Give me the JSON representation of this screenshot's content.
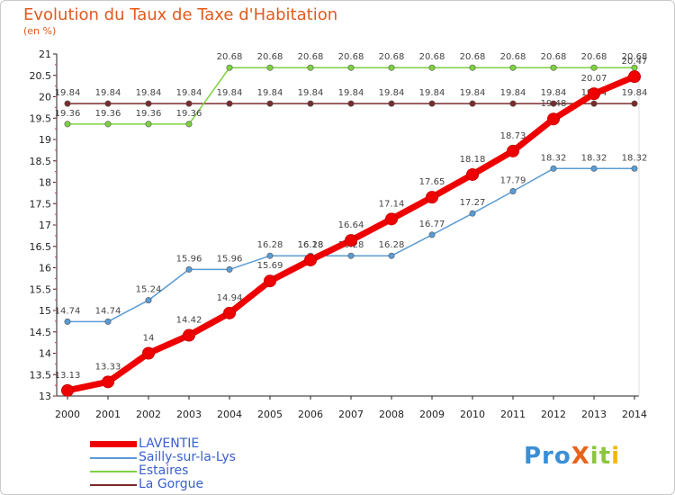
{
  "header": {
    "title": "Evolution du Taux de Taxe d'Habitation",
    "unit": "(en %)"
  },
  "chart_data": {
    "type": "line",
    "x": [
      2000,
      2001,
      2002,
      2003,
      2004,
      2005,
      2006,
      2007,
      2008,
      2009,
      2010,
      2011,
      2012,
      2013,
      2014
    ],
    "ylim": [
      13,
      21
    ],
    "yticks": [
      "13",
      "13.5",
      "14",
      "14.5",
      "15",
      "15.5",
      "16",
      "16.5",
      "17",
      "17.5",
      "18",
      "18.5",
      "19",
      "19.5",
      "20",
      "20.5",
      "21"
    ],
    "grid": false,
    "legend_position": "bottom-left",
    "series": [
      {
        "name": "LAVENTIE",
        "color": "#ee0000",
        "values": [
          13.13,
          13.33,
          14,
          14.42,
          14.94,
          15.69,
          16.18,
          16.64,
          17.14,
          17.65,
          18.18,
          18.73,
          19.48,
          20.07,
          20.47
        ],
        "labels": [
          "13.13",
          "13.33",
          "14",
          "14.42",
          "14.94",
          "15.69",
          "16.18",
          "16.64",
          "17.14",
          "17.65",
          "18.18",
          "18.73",
          "19.48",
          "20.07",
          "20.47"
        ]
      },
      {
        "name": "Sailly-sur-la-Lys",
        "color": "#5b9bd5",
        "values": [
          14.74,
          14.74,
          15.24,
          15.96,
          15.96,
          16.28,
          16.28,
          16.28,
          16.28,
          16.77,
          17.27,
          17.79,
          18.32,
          18.32,
          18.32
        ],
        "labels": [
          "14.74",
          "14.74",
          "15.24",
          "15.96",
          "15.96",
          "16.28",
          "16.28",
          "16.28",
          "16.28",
          "16.77",
          "17.27",
          "17.79",
          "18.32",
          "18.32",
          "18.32"
        ]
      },
      {
        "name": "Estaires",
        "color": "#7ed140",
        "values": [
          19.36,
          19.36,
          19.36,
          19.36,
          20.68,
          20.68,
          20.68,
          20.68,
          20.68,
          20.68,
          20.68,
          20.68,
          20.68,
          20.68,
          20.68
        ],
        "labels": [
          "19.36",
          "19.36",
          "19.36",
          "19.36",
          "20.68",
          "20.68",
          "20.68",
          "20.68",
          "20.68",
          "20.68",
          "20.68",
          "20.68",
          "20.68",
          "20.68",
          "20.68"
        ]
      },
      {
        "name": "La Gorgue",
        "color": "#7a2c2c",
        "values": [
          19.84,
          19.84,
          19.84,
          19.84,
          19.84,
          19.84,
          19.84,
          19.84,
          19.84,
          19.84,
          19.84,
          19.84,
          19.84,
          19.84,
          19.84
        ],
        "labels": [
          "19.84",
          "19.84",
          "19.84",
          "19.84",
          "19.84",
          "19.84",
          "19.84",
          "19.84",
          "19.84",
          "19.84",
          "19.84",
          "19.84",
          "19.84",
          "19.84",
          "19.84"
        ]
      }
    ]
  },
  "legend": {
    "items": [
      {
        "label": "LAVENTIE",
        "color": "#ee0000"
      },
      {
        "label": "Sailly-sur-la-Lys",
        "color": "#5b9bd5"
      },
      {
        "label": "Estaires",
        "color": "#7ed140"
      },
      {
        "label": "La Gorgue",
        "color": "#7a2c2c"
      }
    ]
  },
  "logo": {
    "text": "ProXiti",
    "parts": [
      "Pro",
      "X",
      "it",
      "i"
    ]
  }
}
